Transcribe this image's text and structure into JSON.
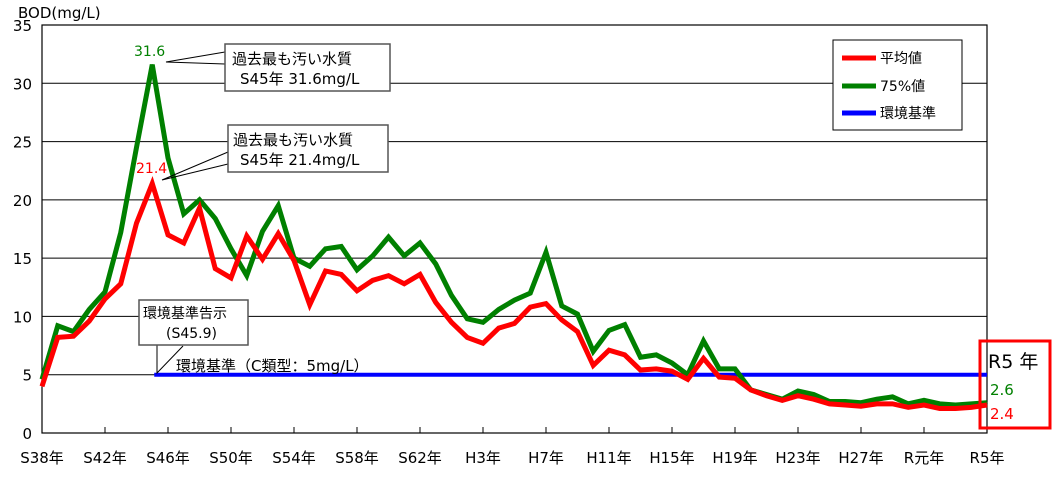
{
  "chart_data": {
    "type": "line",
    "ylabel": "BOD(mg/L)",
    "ylim": [
      0,
      35
    ],
    "yticks": [
      0,
      5,
      10,
      15,
      20,
      25,
      30,
      35
    ],
    "grid": true,
    "legend_position": "top-right",
    "x_tick_labels": [
      "S38年",
      "S42年",
      "S46年",
      "S50年",
      "S54年",
      "S58年",
      "S62年",
      "H3年",
      "H7年",
      "H11年",
      "H15年",
      "H19年",
      "H23年",
      "H27年",
      "R元年",
      "R5年"
    ],
    "x_years": [
      "S38",
      "S39",
      "S40",
      "S41",
      "S42",
      "S43",
      "S44",
      "S45",
      "S46",
      "S47",
      "S48",
      "S49",
      "S50",
      "S51",
      "S52",
      "S53",
      "S54",
      "S55",
      "S56",
      "S57",
      "S58",
      "S59",
      "S60",
      "S61",
      "S62",
      "S63",
      "H1",
      "H2",
      "H3",
      "H4",
      "H5",
      "H6",
      "H7",
      "H8",
      "H9",
      "H10",
      "H11",
      "H12",
      "H13",
      "H14",
      "H15",
      "H16",
      "H17",
      "H18",
      "H19",
      "H20",
      "H21",
      "H22",
      "H23",
      "H24",
      "H25",
      "H26",
      "H27",
      "H28",
      "H29",
      "H30",
      "R1",
      "R2",
      "R3",
      "R4",
      "R5"
    ],
    "series": [
      {
        "name": "平均値",
        "color": "#ff0000",
        "values": [
          4.0,
          8.2,
          8.3,
          9.6,
          11.5,
          12.8,
          18.0,
          21.4,
          17.0,
          16.3,
          19.3,
          14.1,
          13.3,
          16.9,
          14.9,
          17.1,
          14.8,
          11.0,
          13.9,
          13.6,
          12.2,
          13.1,
          13.5,
          12.8,
          13.6,
          11.2,
          9.5,
          8.2,
          7.7,
          9.0,
          9.4,
          10.8,
          11.1,
          9.7,
          8.7,
          5.8,
          7.1,
          6.7,
          5.4,
          5.5,
          5.3,
          4.6,
          6.4,
          4.8,
          4.7,
          3.7,
          3.2,
          2.8,
          3.2,
          2.9,
          2.5,
          2.4,
          2.3,
          2.5,
          2.5,
          2.2,
          2.4,
          2.1,
          2.1,
          2.2,
          2.4
        ]
      },
      {
        "name": "75%値",
        "color": "#008000",
        "values": [
          4.6,
          9.2,
          8.7,
          10.6,
          12.1,
          17.2,
          24.5,
          31.6,
          23.6,
          18.8,
          20.0,
          18.4,
          15.8,
          13.5,
          17.3,
          19.5,
          15.0,
          14.3,
          15.8,
          16.0,
          14.0,
          15.2,
          16.8,
          15.2,
          16.3,
          14.5,
          11.8,
          9.8,
          9.5,
          10.6,
          11.4,
          12.0,
          15.5,
          10.9,
          10.2,
          7.0,
          8.8,
          9.3,
          6.5,
          6.7,
          6.0,
          5.0,
          7.9,
          5.5,
          5.5,
          3.7,
          3.3,
          2.9,
          3.6,
          3.3,
          2.7,
          2.7,
          2.6,
          2.9,
          3.1,
          2.5,
          2.8,
          2.5,
          2.4,
          2.5,
          2.6
        ]
      },
      {
        "name": "環境基準",
        "color": "#0000ff",
        "value": 5,
        "from": "S45",
        "to": "R5"
      }
    ],
    "annotations": {
      "peak_75": {
        "label": "31.6",
        "box_line1": "過去最も汚い水質",
        "box_line2": "S45年 31.6mg/L"
      },
      "peak_mean": {
        "label": "21.4",
        "box_line1": "過去最も汚い水質",
        "box_line2": "S45年 21.4mg/L"
      },
      "notice": {
        "line1": "環境基準告示",
        "line2": "(S45.9)"
      },
      "standard": "環境基準（C類型：5mg/L）",
      "latest": {
        "title": "R5 年",
        "value_75": "2.6",
        "value_mean": "2.4",
        "box_color": "#ff0000"
      }
    }
  }
}
